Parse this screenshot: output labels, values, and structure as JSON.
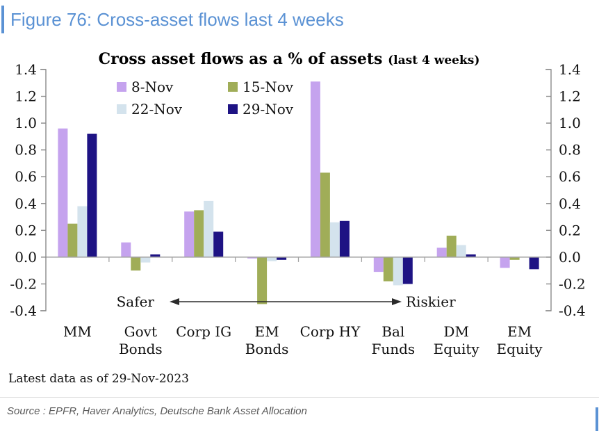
{
  "header": {
    "title": "Figure 76: Cross-asset flows last 4 weeks"
  },
  "chart_data": {
    "type": "bar",
    "title": "Cross asset flows as a % of assets",
    "title_suffix": "(last 4 weeks)",
    "categories": [
      "MM",
      "Govt Bonds",
      "Corp IG",
      "EM Bonds",
      "Corp HY",
      "Bal Funds",
      "DM Equity",
      "EM Equity"
    ],
    "category_label_lines": [
      [
        "MM"
      ],
      [
        "Govt",
        "Bonds"
      ],
      [
        "Corp IG"
      ],
      [
        "EM",
        "Bonds"
      ],
      [
        "Corp HY"
      ],
      [
        "Bal",
        "Funds"
      ],
      [
        "DM",
        "Equity"
      ],
      [
        "EM",
        "Equity"
      ]
    ],
    "series": [
      {
        "name": "8-Nov",
        "color": "#c5a3ee",
        "values": [
          0.96,
          0.11,
          0.34,
          -0.01,
          1.31,
          -0.11,
          0.07,
          -0.08
        ]
      },
      {
        "name": "15-Nov",
        "color": "#a0ad58",
        "values": [
          0.25,
          -0.1,
          0.35,
          -0.35,
          0.63,
          -0.18,
          0.16,
          -0.02
        ]
      },
      {
        "name": "22-Nov",
        "color": "#d4e3ed",
        "values": [
          0.38,
          -0.04,
          0.42,
          -0.03,
          0.26,
          -0.21,
          0.09,
          0.0
        ]
      },
      {
        "name": "29-Nov",
        "color": "#1e1384",
        "values": [
          0.92,
          0.02,
          0.19,
          -0.02,
          0.27,
          -0.2,
          0.02,
          -0.09
        ]
      }
    ],
    "ylim": [
      -0.4,
      1.4
    ],
    "ytick_step": 0.2,
    "ytick_labels": [
      "1.4",
      "1.2",
      "1.0",
      "0.8",
      "0.6",
      "0.4",
      "0.2",
      "0.0",
      "-0.2",
      "-0.4"
    ],
    "grid": false,
    "legend_position": "top-left-two-rows",
    "annotation": {
      "left_label": "Safer",
      "right_label": "Riskier"
    }
  },
  "footnote": {
    "latest": "Latest data as of 29-Nov-2023"
  },
  "source": {
    "text": "Source : EPFR, Haver Analytics, Deutsche Bank Asset Allocation"
  },
  "colors": {
    "accent_blue": "#5b92d4",
    "axis_gray": "#8a8a8a",
    "baseline_gray": "#a3a3a3",
    "series_purple": "#c5a3ee",
    "series_olive": "#a0ad58",
    "series_lightblue": "#d4e3ed",
    "series_navy": "#1e1384"
  }
}
